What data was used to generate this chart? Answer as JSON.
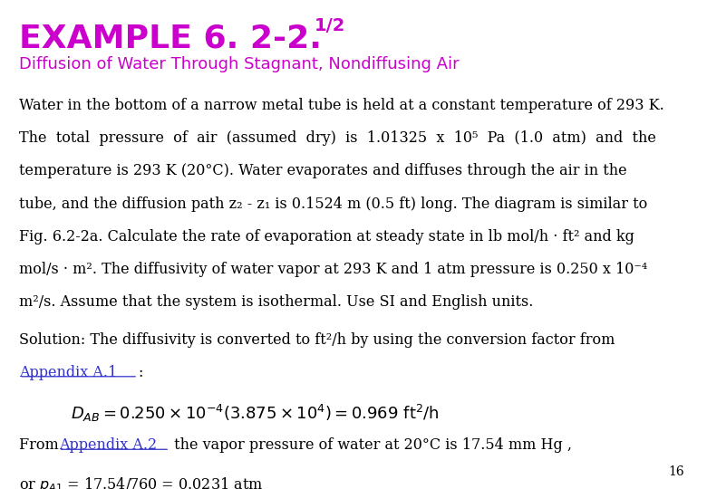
{
  "bg_color": "#ffffff",
  "title_main": "EXAMPLE 6. 2-2.",
  "title_super": "1/2",
  "title_color": "#cc00cc",
  "subtitle": "Diffusion of Water Through Stagnant, Nondiffusing Air",
  "subtitle_color": "#cc00cc",
  "body_color": "#000000",
  "link_color": "#3333cc",
  "page_number": "16",
  "solution_line": "Solution: The diffusivity is converted to ft²/h by using the conversion factor from",
  "appendix_a1_text": "Appendix A.1",
  "appendix_a2_text": "Appendix A.2",
  "from_line_post": " the vapor pressure of water at 20°C is 17.54 mm Hg ,",
  "para1_lines": [
    "Water in the bottom of a narrow metal tube is held at a constant temperature of 293 K.",
    "The  total  pressure  of  air  (assumed  dry)  is  1.01325  x  10⁵  Pa  (1.0  atm)  and  the",
    "temperature is 293 K (20°C). Water evaporates and diffuses through the air in the",
    "tube, and the diffusion path z₂ - z₁ is 0.1524 m (0.5 ft) long. The diagram is similar to",
    "Fig. 6.2-2a. Calculate the rate of evaporation at steady state in lb mol/h · ft² and kg",
    "mol/s · m². The diffusivity of water vapor at 293 K and 1 atm pressure is 0.250 x 10⁻⁴",
    "m²/s. Assume that the system is isothermal. Use SI and English units."
  ]
}
